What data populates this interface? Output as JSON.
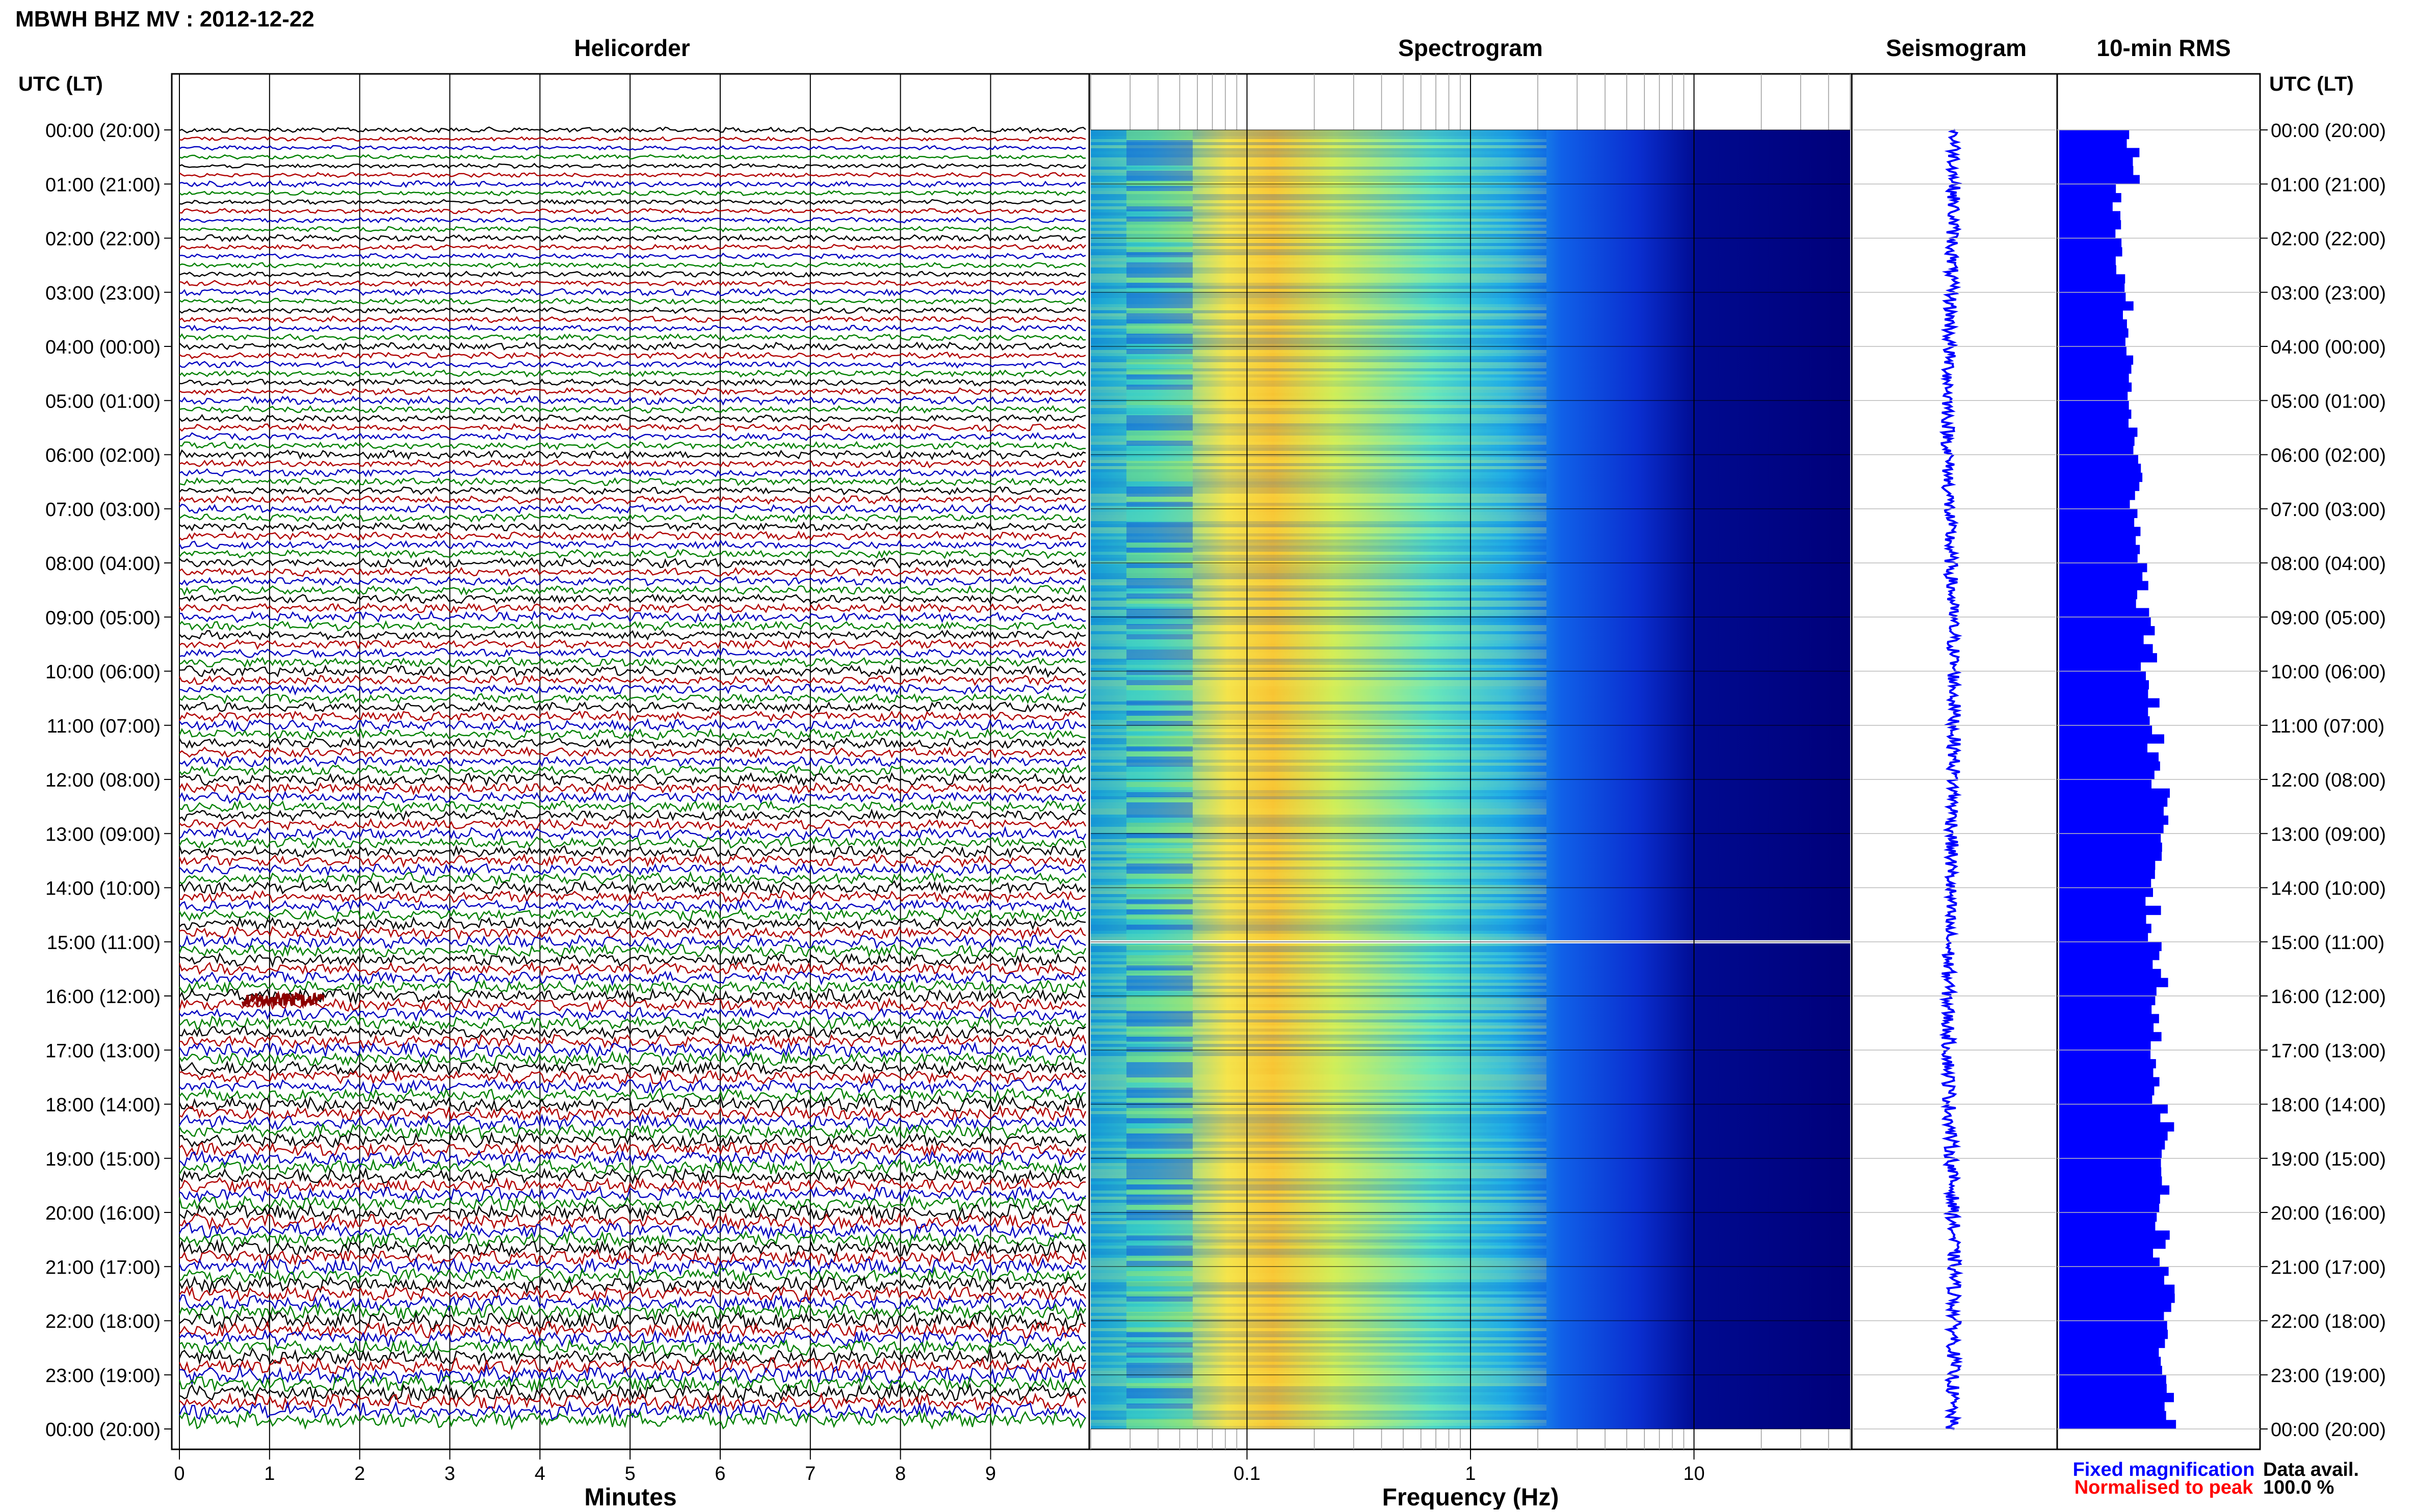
{
  "header": {
    "station_title": "MBWH BHZ MV : 2012-12-22",
    "utc_lt_label": "UTC (LT)"
  },
  "panels": {
    "helicorder": "Helicorder",
    "spectrogram": "Spectrogram",
    "seismogram": "Seismogram",
    "rms": "10-min RMS"
  },
  "axes": {
    "helicorder_xlabel": "Minutes",
    "spectrogram_xlabel": "Frequency (Hz)"
  },
  "legend": {
    "fixed": "Fixed magnification",
    "normalised": "Normalised to peak",
    "data_avail_label": "Data avail.",
    "data_avail_value": "100.0 %"
  },
  "colors": {
    "trace_cycle": [
      "#000000",
      "#b00000",
      "#0000c0",
      "#008000"
    ],
    "fixed": "#0000ff",
    "normalised": "#ff0000",
    "rms_fill": "#0000ff",
    "spectrogram_low": "#00007f",
    "spectrogram_high": "#ff3000"
  },
  "chart_data": [
    {
      "type": "line",
      "title": "Helicorder",
      "xlabel": "Minutes",
      "x_ticks": [
        "0",
        "1",
        "2",
        "3",
        "4",
        "5",
        "6",
        "7",
        "8",
        "9"
      ],
      "xlim": [
        0,
        10
      ],
      "rows": 144,
      "row_minutes": 10,
      "hour_labels": [
        "00:00 (20:00)",
        "01:00 (21:00)",
        "02:00 (22:00)",
        "03:00 (23:00)",
        "04:00 (00:00)",
        "05:00 (01:00)",
        "06:00 (02:00)",
        "07:00 (03:00)",
        "08:00 (04:00)",
        "09:00 (05:00)",
        "10:00 (06:00)",
        "11:00 (07:00)",
        "12:00 (08:00)",
        "13:00 (09:00)",
        "14:00 (10:00)",
        "15:00 (11:00)",
        "16:00 (12:00)",
        "17:00 (13:00)",
        "18:00 (14:00)",
        "19:00 (15:00)",
        "20:00 (16:00)",
        "21:00 (17:00)",
        "22:00 (18:00)",
        "23:00 (19:00)",
        "00:00 (20:00)"
      ],
      "events": [
        {
          "utc": "16:00",
          "minute_start": 0.7,
          "minute_end": 1.6
        }
      ]
    },
    {
      "type": "heatmap",
      "title": "Spectrogram",
      "xlabel": "Frequency (Hz)",
      "x_scale": "log",
      "xlim": [
        0.02,
        50
      ],
      "x_ticks": [
        "0.1",
        "1",
        "10"
      ],
      "x_tick_values": [
        0.1,
        1,
        10
      ],
      "peak_band_hz": [
        0.12,
        0.3
      ],
      "noise_floor_above_hz": 10,
      "gap_utc": "15:00"
    },
    {
      "type": "line",
      "title": "Seismogram",
      "series": [
        {
          "name": "Fixed magnification"
        }
      ]
    },
    {
      "type": "bar",
      "title": "10-min RMS",
      "orientation": "horizontal",
      "values_hourly_relative": [
        0.38,
        0.3,
        0.32,
        0.35,
        0.36,
        0.38,
        0.4,
        0.42,
        0.44,
        0.46,
        0.48,
        0.5,
        0.52,
        0.5,
        0.48,
        0.52,
        0.5,
        0.52,
        0.54,
        0.55,
        0.53,
        0.56,
        0.55,
        0.58,
        0.52
      ]
    }
  ]
}
